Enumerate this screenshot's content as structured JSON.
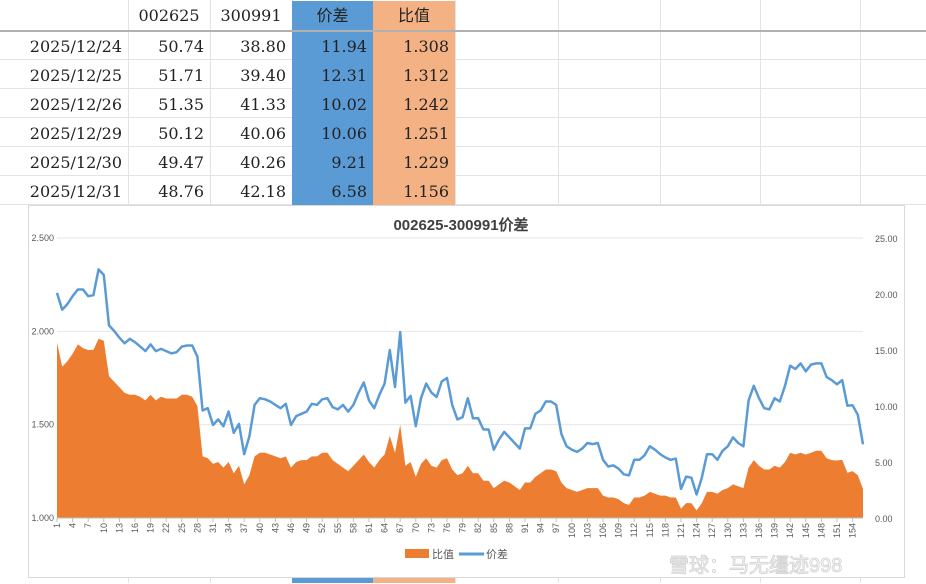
{
  "sheet": {
    "headers": [
      "",
      "002625",
      "300991",
      "价差",
      "比值"
    ],
    "rows": [
      [
        "2025/12/24",
        "50.74",
        "38.80",
        "11.94",
        "1.308"
      ],
      [
        "2025/12/25",
        "51.71",
        "39.40",
        "12.31",
        "1.312"
      ],
      [
        "2025/12/26",
        "51.35",
        "41.33",
        "10.02",
        "1.242"
      ],
      [
        "2025/12/29",
        "50.12",
        "40.06",
        "10.06",
        "1.251"
      ],
      [
        "2025/12/30",
        "49.47",
        "40.26",
        "9.21",
        "1.229"
      ],
      [
        "2025/12/31",
        "48.76",
        "42.18",
        "6.58",
        "1.156"
      ]
    ],
    "colors": {
      "spread": "#5b9bd5",
      "ratio": "#f4b183"
    }
  },
  "chart_data": {
    "type": "area+line",
    "title": "002625-300991价差",
    "left_axis": {
      "range": [
        1.0,
        2.5
      ],
      "ticks": [
        "1.000",
        "1.500",
        "2.000",
        "2.500"
      ]
    },
    "right_axis": {
      "range": [
        0,
        25
      ],
      "ticks": [
        "0.00",
        "5.00",
        "10.00",
        "15.00",
        "20.00",
        "25.00"
      ]
    },
    "x_tick_step": 3,
    "legend": {
      "position": "bottom",
      "items": [
        "比值",
        "价差"
      ]
    },
    "series": [
      {
        "name": "比值",
        "type": "area",
        "axis": "left",
        "color": "#ed7d31",
        "values": [
          1.94,
          1.81,
          1.84,
          1.88,
          1.93,
          1.91,
          1.9,
          1.9,
          1.96,
          1.95,
          1.76,
          1.73,
          1.7,
          1.67,
          1.66,
          1.66,
          1.65,
          1.63,
          1.66,
          1.63,
          1.65,
          1.64,
          1.64,
          1.64,
          1.66,
          1.66,
          1.65,
          1.6,
          1.33,
          1.32,
          1.29,
          1.3,
          1.27,
          1.3,
          1.24,
          1.28,
          1.18,
          1.23,
          1.33,
          1.35,
          1.35,
          1.34,
          1.33,
          1.32,
          1.33,
          1.27,
          1.3,
          1.31,
          1.31,
          1.33,
          1.33,
          1.35,
          1.35,
          1.31,
          1.29,
          1.27,
          1.25,
          1.28,
          1.31,
          1.34,
          1.3,
          1.27,
          1.31,
          1.34,
          1.44,
          1.35,
          1.5,
          1.28,
          1.3,
          1.22,
          1.29,
          1.32,
          1.28,
          1.27,
          1.31,
          1.32,
          1.26,
          1.23,
          1.24,
          1.28,
          1.24,
          1.24,
          1.2,
          1.2,
          1.16,
          1.18,
          1.2,
          1.19,
          1.17,
          1.15,
          1.19,
          1.19,
          1.22,
          1.24,
          1.26,
          1.26,
          1.25,
          1.19,
          1.16,
          1.15,
          1.14,
          1.15,
          1.16,
          1.16,
          1.16,
          1.12,
          1.11,
          1.11,
          1.1,
          1.08,
          1.07,
          1.11,
          1.11,
          1.12,
          1.14,
          1.13,
          1.12,
          1.12,
          1.11,
          1.11,
          1.05,
          1.08,
          1.08,
          1.04,
          1.08,
          1.14,
          1.14,
          1.13,
          1.15,
          1.16,
          1.18,
          1.17,
          1.16,
          1.27,
          1.31,
          1.28,
          1.26,
          1.26,
          1.28,
          1.27,
          1.3,
          1.35,
          1.34,
          1.35,
          1.34,
          1.35,
          1.36,
          1.36,
          1.32,
          1.31,
          1.308,
          1.312,
          1.242,
          1.251,
          1.229,
          1.156
        ]
      },
      {
        "name": "价差",
        "type": "line",
        "axis": "right",
        "color": "#5b9bd5",
        "values": [
          20.1,
          18.6,
          19.1,
          19.8,
          20.4,
          20.4,
          19.8,
          19.9,
          22.2,
          21.7,
          17.2,
          16.7,
          16.1,
          15.6,
          16.0,
          15.7,
          15.3,
          14.9,
          15.5,
          14.9,
          15.1,
          14.9,
          14.7,
          14.8,
          15.3,
          15.4,
          15.4,
          14.4,
          9.6,
          9.8,
          8.3,
          8.8,
          8.2,
          9.5,
          7.6,
          8.4,
          5.7,
          7.3,
          10.1,
          10.7,
          10.6,
          10.4,
          10.1,
          9.8,
          10.2,
          8.3,
          9.1,
          9.3,
          9.5,
          10.2,
          10.1,
          10.6,
          10.7,
          9.9,
          9.7,
          10.1,
          9.5,
          10.1,
          11.2,
          12.1,
          10.5,
          9.8,
          11.0,
          12.0,
          15.0,
          11.7,
          16.6,
          10.3,
          10.9,
          8.2,
          10.7,
          12.0,
          11.2,
          10.8,
          12.2,
          12.5,
          10.1,
          8.8,
          9.0,
          10.7,
          8.9,
          8.9,
          7.9,
          7.9,
          6.1,
          7.0,
          7.7,
          7.2,
          6.7,
          6.2,
          8.0,
          8.0,
          9.3,
          9.6,
          10.4,
          10.4,
          10.1,
          7.5,
          6.4,
          6.1,
          5.9,
          6.2,
          6.7,
          6.6,
          6.7,
          5.2,
          4.6,
          4.7,
          4.4,
          3.9,
          3.8,
          5.2,
          5.2,
          5.6,
          6.4,
          6.1,
          5.7,
          5.4,
          5.2,
          5.3,
          2.6,
          3.7,
          3.6,
          2.1,
          3.6,
          5.7,
          5.7,
          5.2,
          6.0,
          6.4,
          7.2,
          6.7,
          6.4,
          10.5,
          11.8,
          10.7,
          9.8,
          9.7,
          10.7,
          10.4,
          11.8,
          13.6,
          13.3,
          13.8,
          13.1,
          13.7,
          13.8,
          13.8,
          12.6,
          12.3,
          11.94,
          12.31,
          10.02,
          10.06,
          9.21,
          6.58
        ]
      }
    ]
  },
  "watermark": "雪球：马无缰迹998"
}
